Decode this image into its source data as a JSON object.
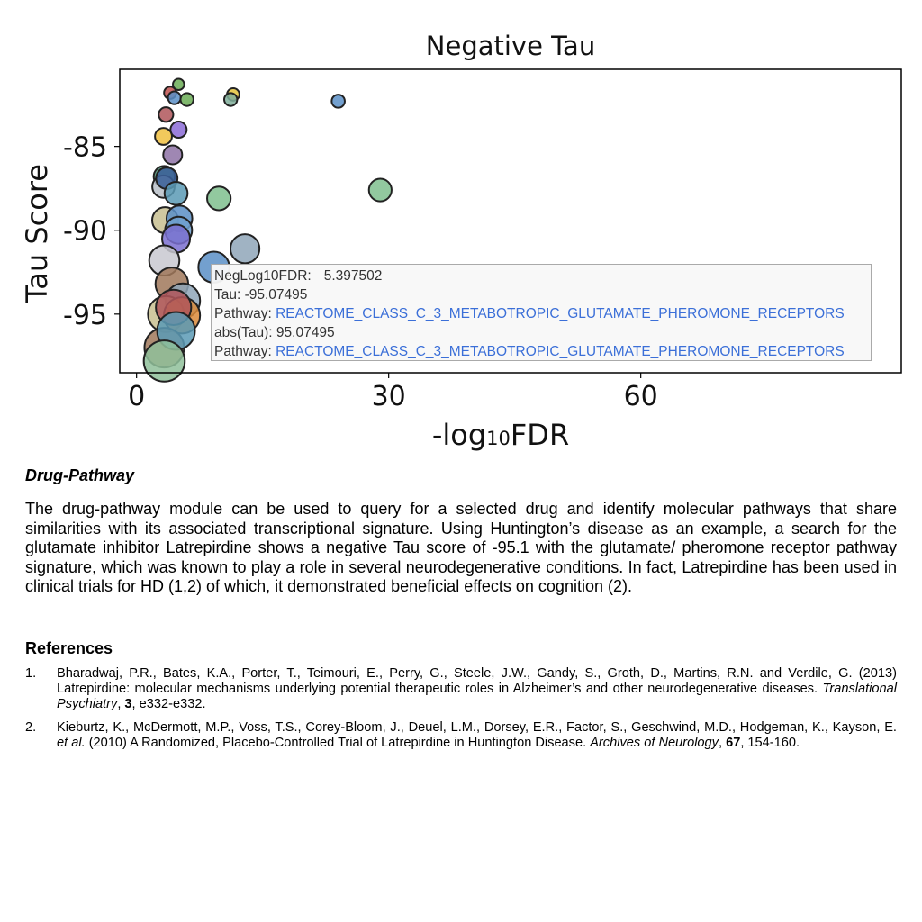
{
  "chart_data": {
    "type": "scatter",
    "title": "Negative Tau",
    "xlabel_main": "-log",
    "xlabel_sub": "10",
    "xlabel_tail": "FDR",
    "ylabel": "Tau Score",
    "xlim": [
      -2,
      91
    ],
    "ylim": [
      -98.5,
      -80.4
    ],
    "x_ticks": [
      0,
      30,
      60
    ],
    "x_tick_labels": [
      "0",
      "30",
      "60"
    ],
    "y_ticks": [
      -85,
      -90,
      -95
    ],
    "y_tick_labels": [
      "-85",
      "-90",
      "-95"
    ],
    "grid": false,
    "points": [
      {
        "x": 4.0,
        "y": -81.8,
        "abs_tau": 81.8,
        "color": "#c0504d"
      },
      {
        "x": 5.0,
        "y": -81.3,
        "abs_tau": 81.3,
        "color": "#6aab55"
      },
      {
        "x": 4.5,
        "y": -82.1,
        "abs_tau": 82.1,
        "color": "#5b8fc7"
      },
      {
        "x": 6.0,
        "y": -82.2,
        "abs_tau": 82.2,
        "color": "#6aab55"
      },
      {
        "x": 11.5,
        "y": -81.9,
        "abs_tau": 81.9,
        "color": "#e3c33a"
      },
      {
        "x": 11.2,
        "y": -82.2,
        "abs_tau": 82.2,
        "color": "#7fae9a"
      },
      {
        "x": 24.0,
        "y": -82.3,
        "abs_tau": 82.3,
        "color": "#5b8fc7"
      },
      {
        "x": 3.5,
        "y": -83.1,
        "abs_tau": 83.1,
        "color": "#b0565a"
      },
      {
        "x": 5.0,
        "y": -84.0,
        "abs_tau": 84.0,
        "color": "#8b6bd6"
      },
      {
        "x": 3.2,
        "y": -84.4,
        "abs_tau": 84.4,
        "color": "#f0c040"
      },
      {
        "x": 4.3,
        "y": -85.5,
        "abs_tau": 85.5,
        "color": "#8e72a6"
      },
      {
        "x": 3.3,
        "y": -86.8,
        "abs_tau": 86.8,
        "color": "#4a8a6e"
      },
      {
        "x": 3.2,
        "y": -87.4,
        "abs_tau": 87.4,
        "color": "#b8c0c8"
      },
      {
        "x": 3.6,
        "y": -86.9,
        "abs_tau": 86.9,
        "color": "#3a5f9a"
      },
      {
        "x": 4.7,
        "y": -87.8,
        "abs_tau": 87.8,
        "color": "#5a9ab5"
      },
      {
        "x": 9.8,
        "y": -88.1,
        "abs_tau": 88.1,
        "color": "#7fc08e"
      },
      {
        "x": 29.0,
        "y": -87.6,
        "abs_tau": 87.6,
        "color": "#7fc08e"
      },
      {
        "x": 3.4,
        "y": -89.4,
        "abs_tau": 89.4,
        "color": "#c8c090"
      },
      {
        "x": 5.1,
        "y": -89.3,
        "abs_tau": 89.3,
        "color": "#5b8fc7"
      },
      {
        "x": 5.0,
        "y": -90.0,
        "abs_tau": 90.0,
        "color": "#6ea0cf"
      },
      {
        "x": 4.7,
        "y": -90.5,
        "abs_tau": 90.5,
        "color": "#7a6fd0"
      },
      {
        "x": 12.9,
        "y": -91.1,
        "abs_tau": 91.1,
        "color": "#8fa6b8"
      },
      {
        "x": 9.2,
        "y": -92.2,
        "abs_tau": 92.2,
        "color": "#5b8fc7"
      },
      {
        "x": 3.3,
        "y": -91.8,
        "abs_tau": 91.8,
        "color": "#c8c8d0"
      },
      {
        "x": 4.2,
        "y": -93.2,
        "abs_tau": 93.2,
        "color": "#a0785a"
      },
      {
        "x": 5.5,
        "y": -94.2,
        "abs_tau": 94.2,
        "color": "#8fa6b8"
      },
      {
        "x": 3.5,
        "y": -95.0,
        "abs_tau": 95.0,
        "color": "#c8c090"
      },
      {
        "x": 5.4,
        "y": -95.07495,
        "abs_tau": 95.07495,
        "color": "#d98a3a"
      },
      {
        "x": 4.4,
        "y": -94.6,
        "abs_tau": 94.6,
        "color": "#b0565a"
      },
      {
        "x": 3.3,
        "y": -97.0,
        "abs_tau": 97.0,
        "color": "#a0785a"
      },
      {
        "x": 4.7,
        "y": -96.0,
        "abs_tau": 96.0,
        "color": "#5a9ab5"
      },
      {
        "x": 3.3,
        "y": -97.8,
        "abs_tau": 97.8,
        "color": "#8fc09a"
      }
    ],
    "tooltip": {
      "row1_label": "NegLog10FDR:",
      "row1_value": "5.397502",
      "row2": "Tau: -95.07495",
      "row3_label": "Pathway:",
      "row3_value": "REACTOME_CLASS_C_3_METABOTROPIC_GLUTAMATE_PHEROMONE_RECEPTORS",
      "row4": "abs(Tau): 95.07495",
      "row5_label": "Pathway:",
      "row5_value": "REACTOME_CLASS_C_3_METABOTROPIC_GLUTAMATE_PHEROMONE_RECEPTORS"
    }
  },
  "section_title": "Drug-Pathway",
  "paragraph": "The drug-pathway module can be used to query for a selected drug and identify molecular pathways that share similarities with its associated transcriptional signature. Using Huntington’s disease as an example, a search for the glutamate inhibitor Latrepirdine shows a negative Tau score of -95.1 with the glutamate/ pheromone receptor pathway signature, which was known to play a role in several neurodegenerative conditions. In fact, Latrepirdine has been used in clinical trials for HD (1,2) of which, it demonstrated beneficial effects on cognition (2).",
  "references_title": "References",
  "references": [
    {
      "num": "1.",
      "text_a": "Bharadwaj, P.R., Bates, K.A., Porter, T., Teimouri, E., Perry, G., Steele, J.W., Gandy, S., Groth, D., Martins, R.N. and Verdile, G. (2013) Latrepirdine: molecular mechanisms underlying potential therapeutic roles in Alzheimer’s and other neurodegenerative diseases. ",
      "journal": "Translational Psychiatry",
      "sep1": ", ",
      "volume": "3",
      "text_b": ", e332-e332."
    },
    {
      "num": "2.",
      "text_a": "Kieburtz, K., McDermott, M.P., Voss, T.S., Corey-Bloom, J., Deuel, L.M., Dorsey, E.R., Factor, S., Geschwind, M.D., Hodgeman, K., Kayson, E. ",
      "etal": "et al.",
      "text_mid": " (2010) A Randomized, Placebo-Controlled Trial of Latrepirdine in Huntington Disease. ",
      "journal": "Archives of Neurology",
      "sep1": ", ",
      "volume": "67",
      "text_b": ", 154-160."
    }
  ]
}
